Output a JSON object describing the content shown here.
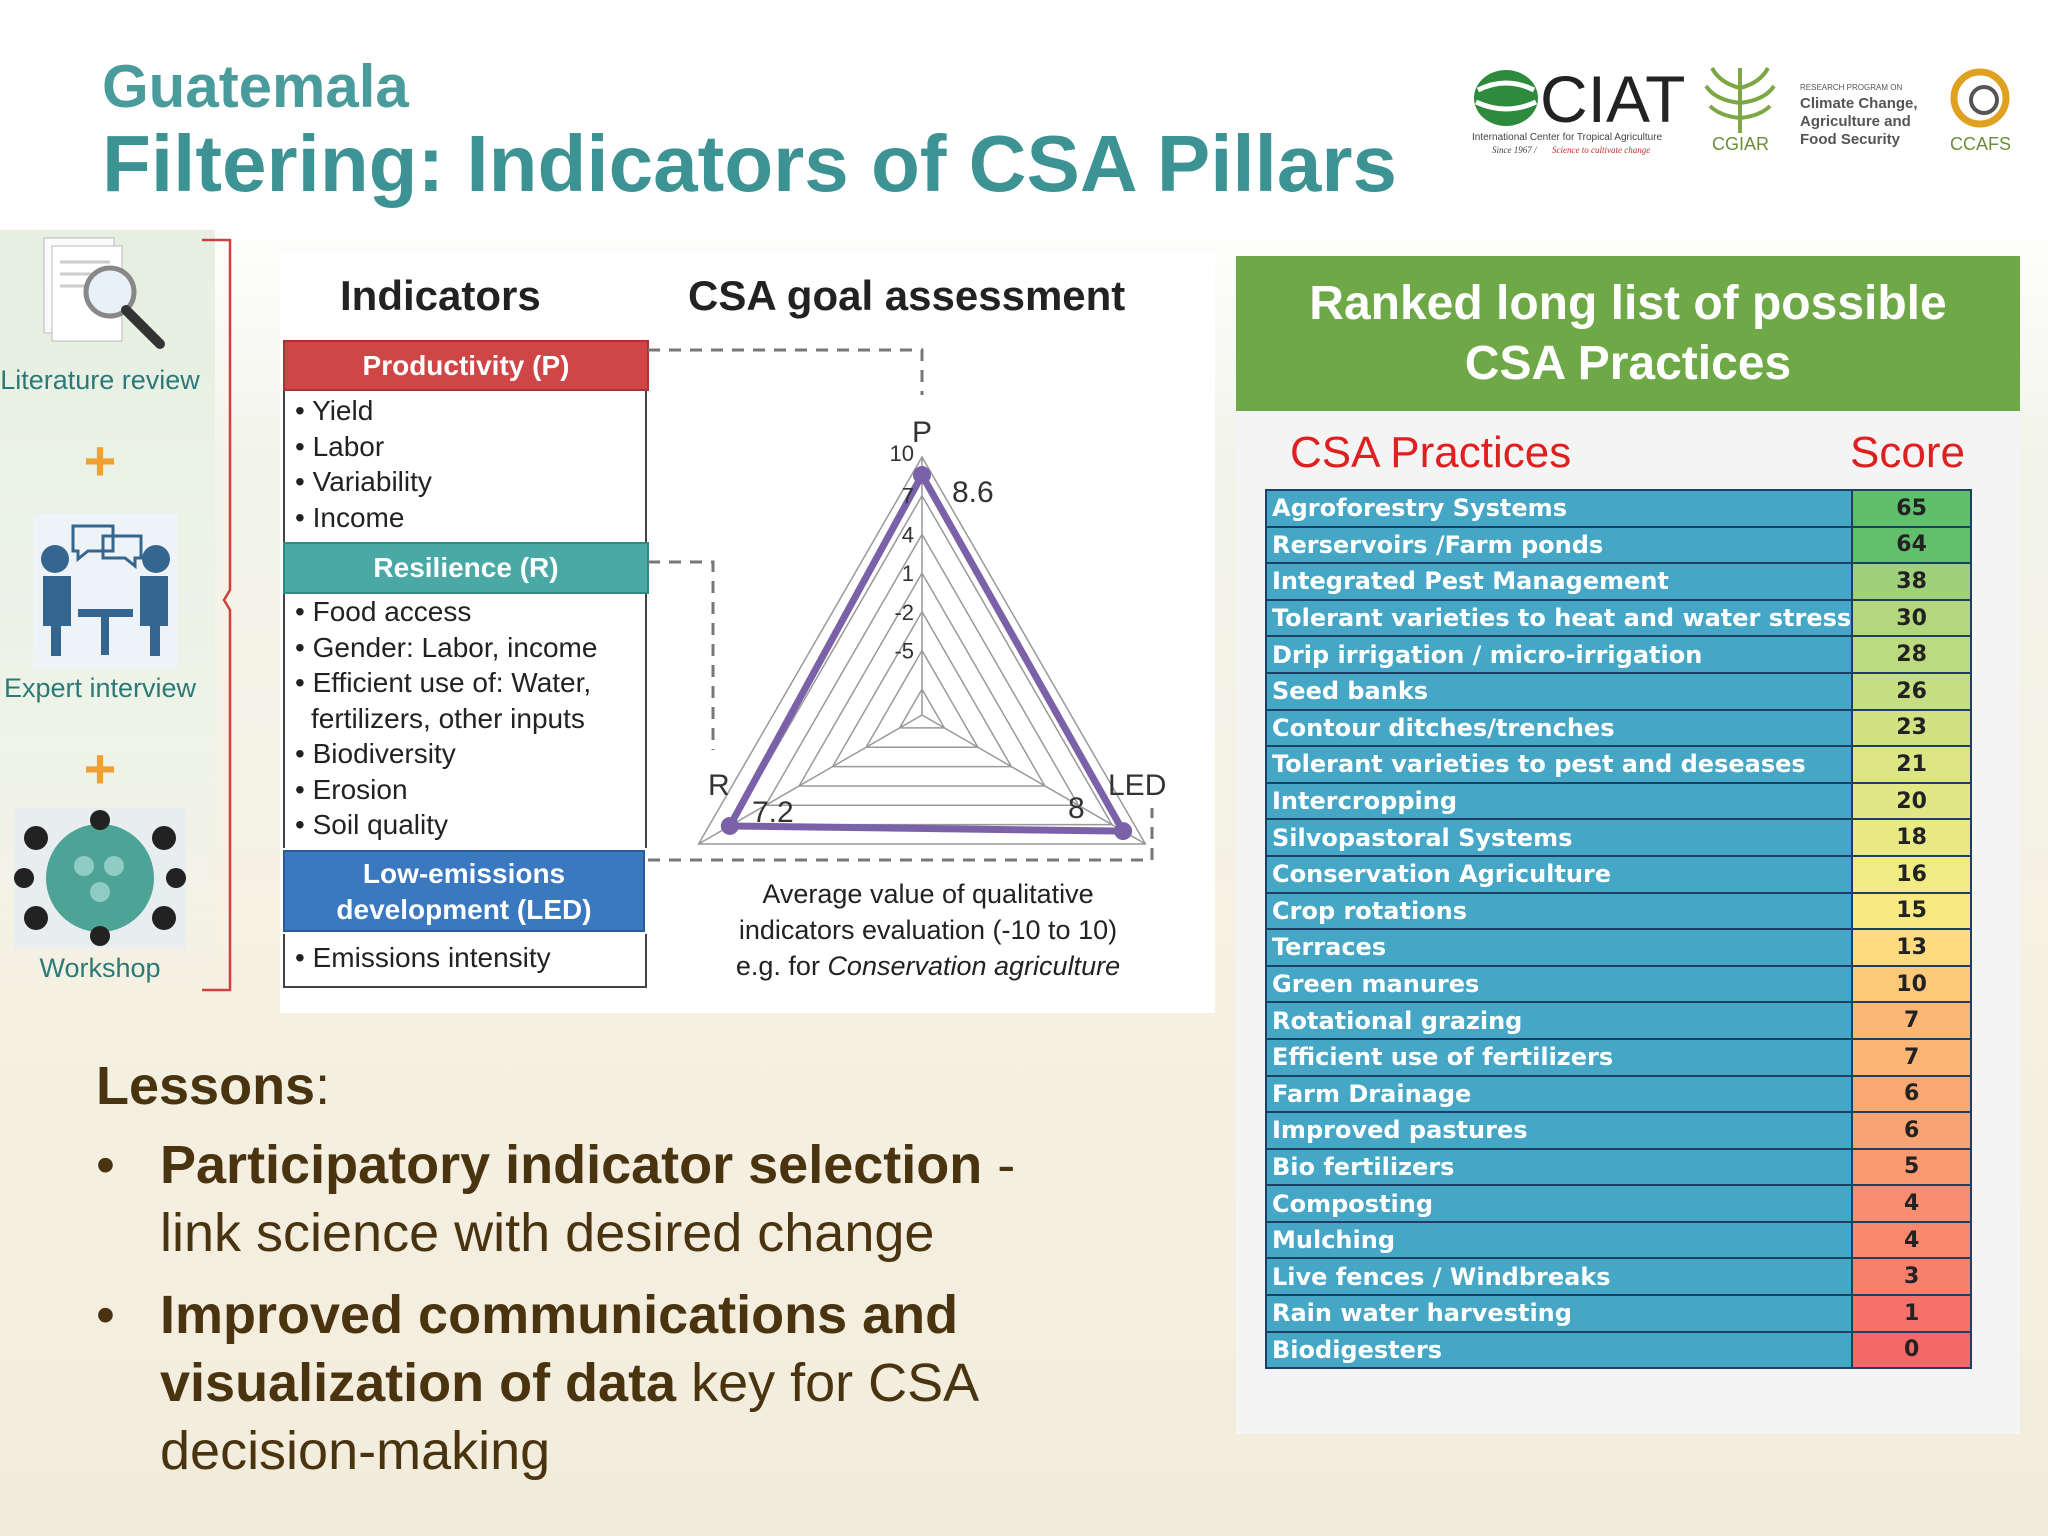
{
  "header": {
    "country": "Guatemala",
    "title": "Filtering: Indicators of CSA Pillars"
  },
  "logos": {
    "ciat": "CIAT",
    "ciat_full": "International Center for Tropical Agriculture",
    "ciat_since": "Since 1967 /",
    "ciat_tagline": "Science to cultivate change",
    "cgiar": "CGIAR",
    "ccafs_program_small": "RESEARCH PROGRAM ON",
    "ccafs_program_1": "Climate Change,",
    "ccafs_program_2": "Agriculture and",
    "ccafs_program_3": "Food Security",
    "ccafs": "CCAFS"
  },
  "process": {
    "literature": "Literature review",
    "expert": "Expert interview",
    "workshop": "Workshop",
    "plus": "+"
  },
  "indicators": {
    "heading": "Indicators",
    "productivity": {
      "label": "Productivity (P)",
      "items": [
        "Yield",
        "Labor",
        "Variability",
        "Income"
      ]
    },
    "resilience": {
      "label": "Resilience (R)",
      "items": [
        "Food access",
        "Gender: Labor, income",
        "Efficient use of: Water,",
        "fertilizers, other inputs",
        "Biodiversity",
        "Erosion",
        "Soil quality"
      ]
    },
    "led": {
      "label_1": "Low-emissions",
      "label_2": "development (LED)",
      "items": [
        "Emissions intensity"
      ]
    }
  },
  "assessment": {
    "heading": "CSA goal assessment",
    "axes": [
      "P",
      "R",
      "LED"
    ],
    "scale_ticks": [
      "10",
      "7",
      "4",
      "1",
      "-2",
      "-5"
    ],
    "values": {
      "P": 8.6,
      "R": 7.2,
      "LED": 8
    },
    "value_labels": {
      "P": "8.6",
      "R": "7.2",
      "LED": "8"
    },
    "caption_1": "Average value of qualitative",
    "caption_2": "indicators evaluation (-10 to 10)",
    "caption_3_prefix": "e.g. for ",
    "caption_3_italic": "Conservation agriculture"
  },
  "ranked": {
    "title_1": "Ranked long list of possible",
    "title_2": "CSA Practices",
    "col_practice": "CSA Practices",
    "col_score": "Score",
    "rows": [
      {
        "name": "Agroforestry Systems",
        "score": "65",
        "color": "#5fbf6a"
      },
      {
        "name": "Rerservoirs /Farm ponds",
        "score": "64",
        "color": "#62c06b"
      },
      {
        "name": "Integrated Pest Management",
        "score": "38",
        "color": "#9fd07a"
      },
      {
        "name": "Tolerant varieties to heat and water stress",
        "score": "30",
        "color": "#b2d77d"
      },
      {
        "name": "Drip irrigation / micro-irrigation",
        "score": "28",
        "color": "#bcdb7f"
      },
      {
        "name": "Seed banks",
        "score": "26",
        "color": "#c5de81"
      },
      {
        "name": "Contour ditches/trenches",
        "score": "23",
        "color": "#d2e283"
      },
      {
        "name": "Tolerant varieties to pest and deseases",
        "score": "21",
        "color": "#dbe584"
      },
      {
        "name": "Intercropping",
        "score": "20",
        "color": "#e0e784"
      },
      {
        "name": "Silvopastoral Systems",
        "score": "18",
        "color": "#e8e985"
      },
      {
        "name": "Conservation Agriculture",
        "score": "16",
        "color": "#f1eb84"
      },
      {
        "name": "Crop rotations",
        "score": "15",
        "color": "#f8e982"
      },
      {
        "name": "Terraces",
        "score": "13",
        "color": "#fddb7e"
      },
      {
        "name": "Green manures",
        "score": "10",
        "color": "#fcc979"
      },
      {
        "name": "Rotational grazing",
        "score": "7",
        "color": "#fbb775"
      },
      {
        "name": "Efficient use of fertilizers",
        "score": "7",
        "color": "#fbb575"
      },
      {
        "name": "Farm Drainage",
        "score": "6",
        "color": "#faa872"
      },
      {
        "name": "Improved pastures",
        "score": "6",
        "color": "#faa372"
      },
      {
        "name": "Bio fertilizers",
        "score": "5",
        "color": "#f99a70"
      },
      {
        "name": "Composting",
        "score": "4",
        "color": "#f88e6e"
      },
      {
        "name": "Mulching",
        "score": "4",
        "color": "#f8896d"
      },
      {
        "name": "Live fences / Windbreaks",
        "score": "3",
        "color": "#f77f6c"
      },
      {
        "name": "Rain water harvesting",
        "score": "1",
        "color": "#f6716a"
      },
      {
        "name": "Biodigesters",
        "score": "0",
        "color": "#f56868"
      }
    ]
  },
  "lessons": {
    "heading": "Lessons",
    "colon": ":",
    "b1_bold": "Participatory indicator selection",
    "b1_rest_1": " -",
    "b1_rest_2": "link science with desired change",
    "b2_bold_1": "Improved communications and",
    "b2_bold_2": "visualization of data",
    "b2_rest_1": " key for CSA",
    "b2_rest_2": "decision-making",
    "bullet": "•"
  },
  "colors": {
    "teal_title": "#3d9393",
    "productivity": "#d04545",
    "resilience": "#4aa9a5",
    "led": "#3a78c0",
    "ranked_header": "#6ea847",
    "practice_cell": "#45a7c5",
    "red_header": "#e02020",
    "lessons_text": "#4a3410",
    "radar_line": "#7b62a8"
  }
}
